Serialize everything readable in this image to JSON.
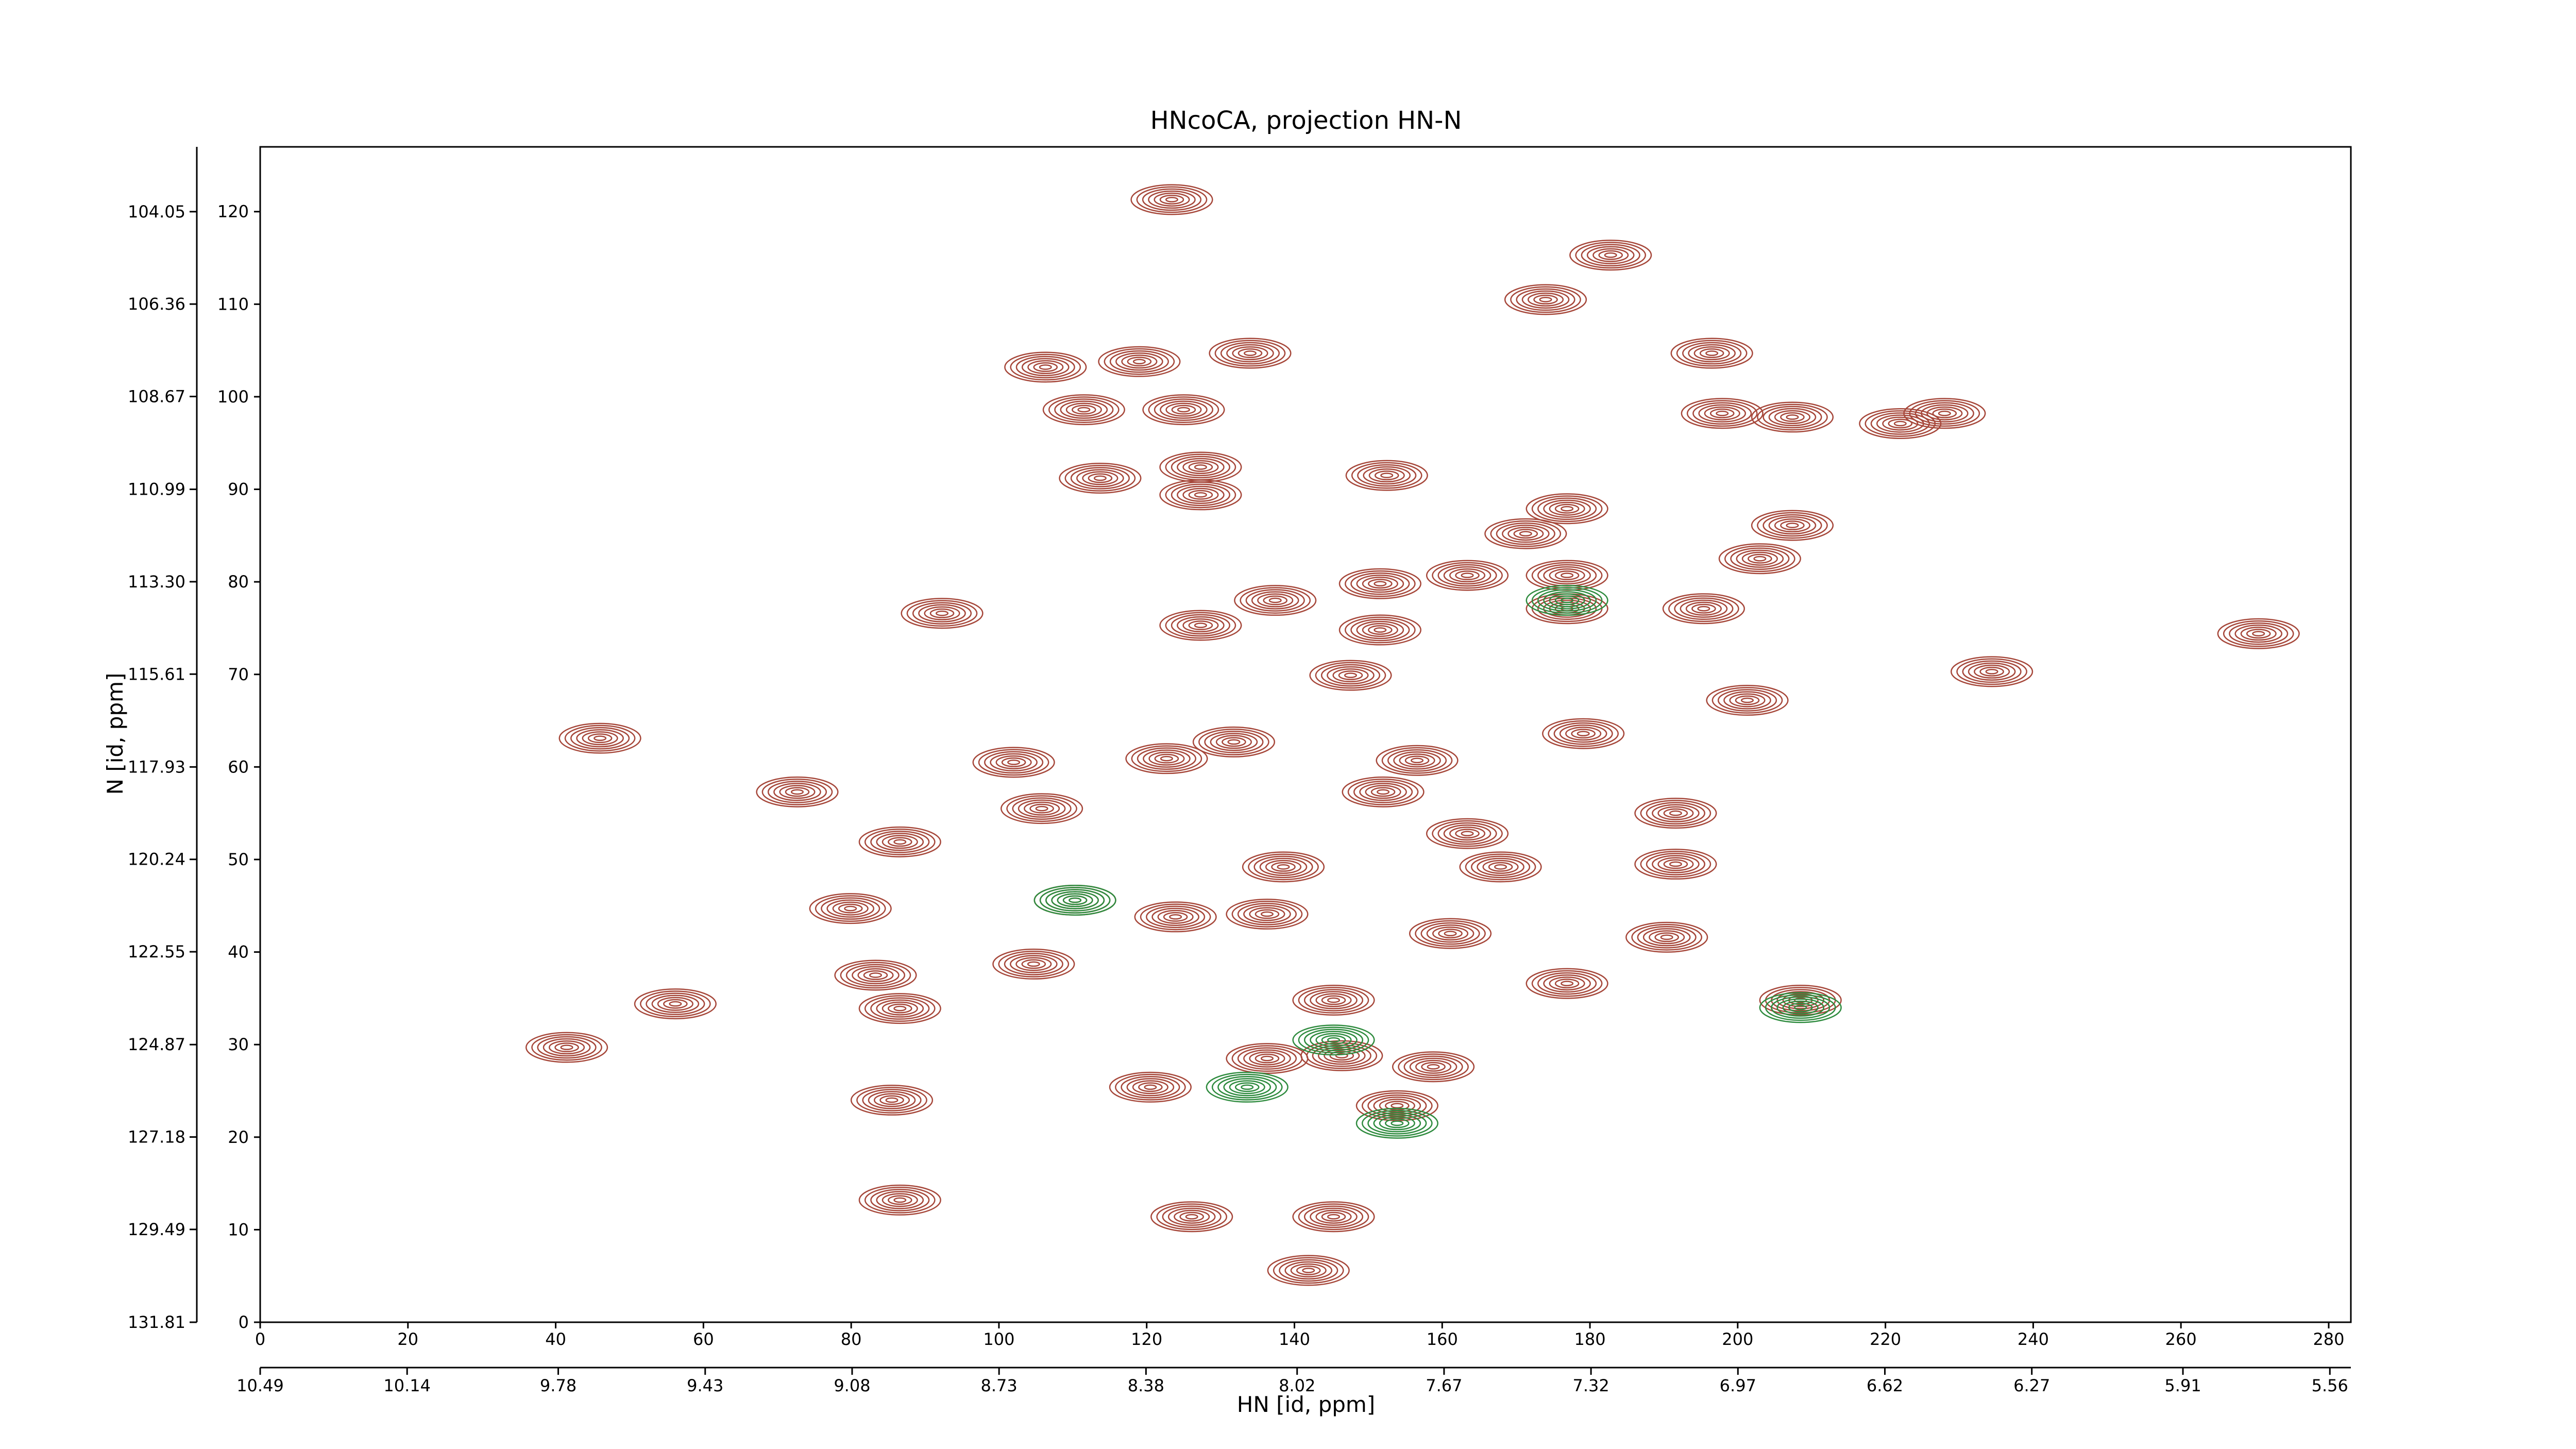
{
  "chart_data": {
    "type": "contour",
    "title": "HNcoCA, projection HN-N",
    "xlabel": "HN [id, ppm]",
    "ylabel": "N [id, ppm]",
    "xlim": [
      0,
      283
    ],
    "ylim": [
      0,
      127
    ],
    "xticks": [
      0,
      20,
      40,
      60,
      80,
      100,
      120,
      140,
      160,
      180,
      200,
      220,
      240,
      260,
      280
    ],
    "yticks": [
      0,
      10,
      20,
      30,
      40,
      50,
      60,
      70,
      80,
      90,
      100,
      110,
      120
    ],
    "x2lim": [
      10.49,
      5.51
    ],
    "x2ticks": [
      10.49,
      10.14,
      9.78,
      9.43,
      9.08,
      8.73,
      8.38,
      8.02,
      7.67,
      7.32,
      6.97,
      6.62,
      6.27,
      5.91,
      5.56
    ],
    "y2lim": [
      131.81,
      102.43
    ],
    "y2ticks": [
      131.81,
      129.49,
      127.18,
      124.87,
      122.55,
      120.24,
      117.93,
      115.61,
      {
        "value": 113.3,
        "label": "113.30"
      },
      110.99,
      108.67,
      106.36,
      104.05
    ],
    "peak_width": 11,
    "peak_height": 3.2,
    "contour_levels": 7,
    "peaks": {
      "color": "#a6473a",
      "x": [
        123.4,
        182.8,
        174,
        196.5,
        134,
        119,
        106.3,
        111.5,
        125,
        222,
        228,
        197.9,
        207.4,
        127.3,
        113.7,
        152.5,
        127.3,
        207.4,
        176.9,
        171.3,
        203,
        163.4,
        176.9,
        151.6,
        137.4,
        176.9,
        195.4,
        92.3,
        127.3,
        151.6,
        270.5,
        234.4,
        147.6,
        201.3,
        179.1,
        46,
        131.8,
        156.6,
        102,
        122.7,
        72.7,
        152,
        191.6,
        105.8,
        163.4,
        86.6,
        191.6,
        167.9,
        138.5,
        110.3,
        79.9,
        123.9,
        136.3,
        161.1,
        190.4,
        104.7,
        83.3,
        176.9,
        145.3,
        208.5,
        56.2,
        86.6,
        41.5,
        136.3,
        146.4,
        158.8,
        85.5,
        120.5,
        153.9,
        86.6,
        126.1,
        145.3,
        141.9
      ],
      "y": [
        121.3,
        115.3,
        110.5,
        104.7,
        104.7,
        103.8,
        103.2,
        98.6,
        98.6,
        97.1,
        98.2,
        98.2,
        97.8,
        92.4,
        91.2,
        91.5,
        89.4,
        86.1,
        87.9,
        85.2,
        82.5,
        80.7,
        80.7,
        79.8,
        78,
        77.1,
        77.1,
        76.6,
        75.3,
        74.8,
        74.4,
        70.3,
        69.9,
        67.2,
        63.6,
        63.1,
        62.7,
        60.7,
        60.5,
        60.9,
        57.3,
        57.3,
        55,
        55.5,
        52.8,
        51.9,
        49.5,
        49.2,
        49.2,
        45.6,
        44.7,
        43.8,
        44.1,
        42,
        41.6,
        38.7,
        37.5,
        36.6,
        34.8,
        34.8,
        34.4,
        33.9,
        29.7,
        28.5,
        28.8,
        27.6,
        24,
        25.4,
        23.4,
        13.2,
        11.4,
        11.4,
        5.6
      ]
    },
    "negative_peaks": {
      "color": "#2e8b3e",
      "x": [
        110.3,
        153.9,
        133.6,
        145.3,
        176.9,
        208.5
      ],
      "y": [
        45.6,
        21.5,
        25.4,
        30.5,
        78,
        34
      ]
    }
  }
}
